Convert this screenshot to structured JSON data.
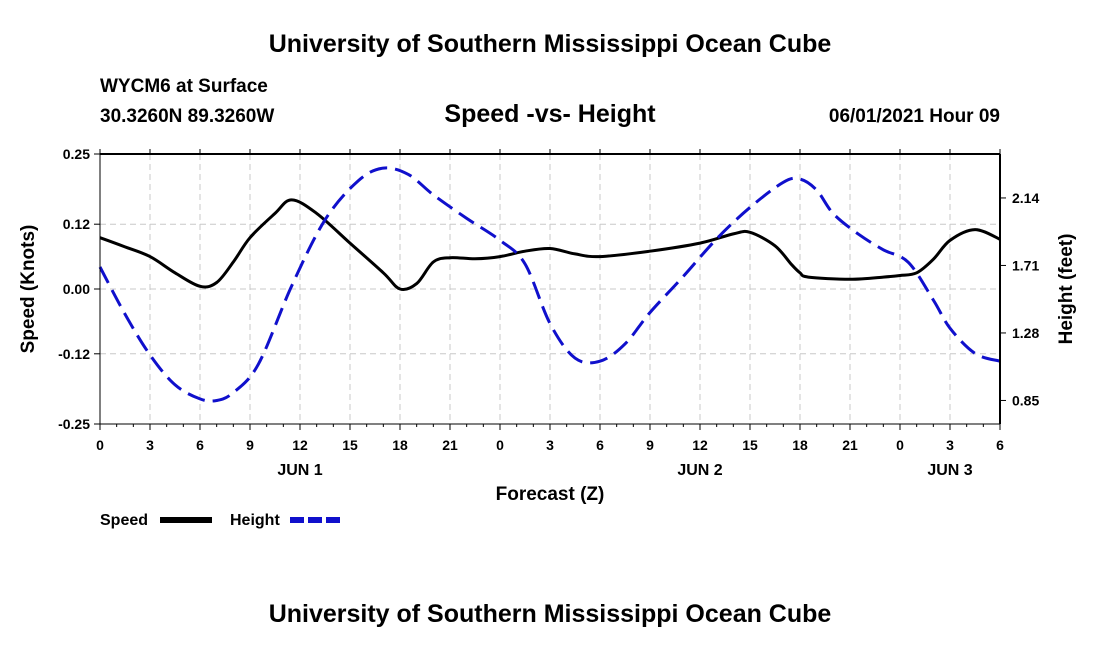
{
  "page": {
    "top_title": "University of Southern Mississippi Ocean Cube",
    "bottom_title": "University of Southern Mississippi Ocean Cube",
    "station": "WYCM6 at Surface",
    "coords": "30.3260N  89.3260W",
    "datetime": "06/01/2021 Hour 09"
  },
  "chart_data": {
    "type": "line",
    "title": "Speed -vs- Height",
    "xlabel": "Forecast (Z)",
    "ylabel": "Speed (Knots)",
    "y2label": "Height (feet)",
    "xlim": [
      0,
      54
    ],
    "ylim": [
      -0.25,
      0.25
    ],
    "y2lim": [
      0.7,
      2.42
    ],
    "x_ticks": [
      0,
      3,
      6,
      9,
      12,
      15,
      18,
      21,
      24,
      27,
      30,
      33,
      36,
      39,
      42,
      45,
      48,
      51,
      54
    ],
    "x_tick_labels": [
      "0",
      "3",
      "6",
      "9",
      "12",
      "15",
      "18",
      "21",
      "0",
      "3",
      "6",
      "9",
      "12",
      "15",
      "18",
      "21",
      "0",
      "3",
      "6"
    ],
    "x_day_labels": [
      {
        "x": 12,
        "label": "JUN 1"
      },
      {
        "x": 36,
        "label": "JUN 2"
      },
      {
        "x": 51,
        "label": "JUN 3"
      }
    ],
    "y_ticks": [
      -0.25,
      -0.12,
      0.0,
      0.12,
      0.25
    ],
    "y_tick_labels": [
      "-0.25",
      "-0.12",
      "0.00",
      "0.12",
      "0.25"
    ],
    "y2_ticks": [
      0.85,
      1.28,
      1.71,
      2.14
    ],
    "y2_tick_labels": [
      "0.85",
      "1.28",
      "1.71",
      "2.14"
    ],
    "grid": true,
    "series": [
      {
        "name": "Speed",
        "axis": "left",
        "color": "#000000",
        "style": "solid",
        "x": [
          0,
          1.5,
          3,
          4.5,
          6,
          7,
          8,
          9,
          10.5,
          11.5,
          13,
          15,
          17,
          18,
          19,
          20,
          21,
          22.5,
          24,
          25.5,
          27,
          28.5,
          30,
          33,
          36,
          38,
          39,
          40.5,
          41.5,
          42,
          42.5,
          45,
          47,
          48,
          49,
          50,
          51,
          52.5,
          54
        ],
        "values": [
          0.095,
          0.078,
          0.06,
          0.03,
          0.005,
          0.012,
          0.05,
          0.095,
          0.14,
          0.165,
          0.14,
          0.085,
          0.03,
          0.0,
          0.01,
          0.05,
          0.058,
          0.056,
          0.06,
          0.07,
          0.075,
          0.065,
          0.06,
          0.07,
          0.085,
          0.102,
          0.105,
          0.08,
          0.045,
          0.03,
          0.022,
          0.018,
          0.022,
          0.025,
          0.03,
          0.055,
          0.09,
          0.11,
          0.092
        ]
      },
      {
        "name": "Height",
        "axis": "right",
        "color": "#1010cc",
        "style": "dashed",
        "x": [
          0,
          1.5,
          3,
          4.5,
          6,
          7,
          8,
          9.5,
          11.5,
          13.5,
          15.5,
          17,
          18.5,
          20,
          22,
          24,
          25.5,
          27,
          28.5,
          30,
          31.5,
          33,
          35,
          37,
          39,
          41,
          42,
          43,
          44,
          45.5,
          47,
          48.5,
          50,
          51,
          52.5,
          54
        ],
        "values": [
          1.7,
          1.4,
          1.14,
          0.95,
          0.86,
          0.85,
          0.9,
          1.08,
          1.58,
          2.0,
          2.25,
          2.33,
          2.29,
          2.16,
          2.01,
          1.87,
          1.72,
          1.34,
          1.12,
          1.1,
          1.21,
          1.41,
          1.64,
          1.88,
          2.08,
          2.24,
          2.26,
          2.19,
          2.04,
          1.91,
          1.81,
          1.73,
          1.49,
          1.31,
          1.15,
          1.1
        ]
      }
    ],
    "legend": [
      {
        "label": "Speed",
        "color": "#000000",
        "style": "solid"
      },
      {
        "label": "Height",
        "color": "#1010cc",
        "style": "dashed"
      }
    ]
  }
}
